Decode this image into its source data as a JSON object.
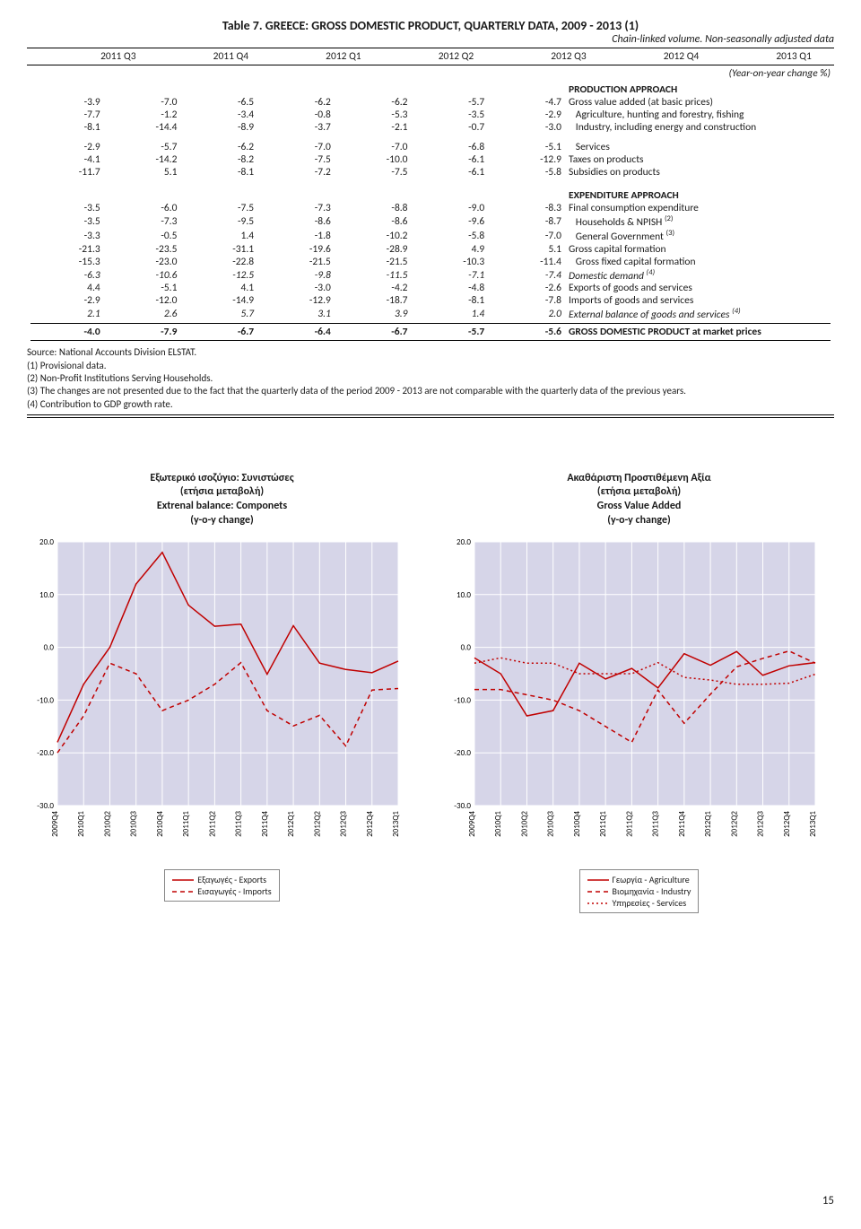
{
  "table": {
    "title": "Table 7. GREECE: GROSS DOMESTIC PRODUCT, QUARTERLY DATA, 2009 - 2013 (1)",
    "subtitle": "Chain-linked volume. Non-seasonally adjusted data",
    "col_headers": [
      "2011 Q3",
      "2011 Q4",
      "2012 Q1",
      "2012 Q2",
      "2012 Q3",
      "2012 Q4",
      "2013 Q1"
    ],
    "unit_line": "(Year-on-year change %)",
    "production_hdr": "PRODUCTION APPROACH",
    "expenditure_hdr": "EXPENDITURE APPROACH",
    "rows_prod": [
      {
        "v": [
          "-3.9",
          "-7.0",
          "-6.5",
          "-6.2",
          "-6.2",
          "-5.7",
          "-4.7"
        ],
        "l": "Gross value added (at basic prices)"
      },
      {
        "v": [
          "-7.7",
          "-1.2",
          "-3.4",
          "-0.8",
          "-5.3",
          "-3.5",
          "-2.9"
        ],
        "l": "   Agriculture, hunting and forestry, fishing"
      },
      {
        "v": [
          "-8.1",
          "-14.4",
          "-8.9",
          "-3.7",
          "-2.1",
          "-0.7",
          "-3.0"
        ],
        "l": "   Industry, including energy and construction"
      }
    ],
    "rows_prod2": [
      {
        "v": [
          "-2.9",
          "-5.7",
          "-6.2",
          "-7.0",
          "-7.0",
          "-6.8",
          "-5.1"
        ],
        "l": "   Services"
      },
      {
        "v": [
          "-4.1",
          "-14.2",
          "-8.2",
          "-7.5",
          "-10.0",
          "-6.1",
          "-12.9"
        ],
        "l": "Taxes on products"
      },
      {
        "v": [
          "-11.7",
          "5.1",
          "-8.1",
          "-7.2",
          "-7.5",
          "-6.1",
          "-5.8"
        ],
        "l": "Subsidies on products"
      }
    ],
    "rows_exp": [
      {
        "v": [
          "-3.5",
          "-6.0",
          "-7.5",
          "-7.3",
          "-8.8",
          "-9.0",
          "-8.3"
        ],
        "l": "Final consumption expenditure"
      },
      {
        "v": [
          "-3.5",
          "-7.3",
          "-9.5",
          "-8.6",
          "-8.6",
          "-9.6",
          "-8.7"
        ],
        "l": "   Households & NPISH (2)"
      },
      {
        "v": [
          "-3.3",
          "-0.5",
          "1.4",
          "-1.8",
          "-10.2",
          "-5.8",
          "-7.0"
        ],
        "l": "   General Government (3)"
      },
      {
        "v": [
          "-21.3",
          "-23.5",
          "-31.1",
          "-19.6",
          "-28.9",
          "4.9",
          "5.1"
        ],
        "l": "Gross capital formation"
      },
      {
        "v": [
          "-15.3",
          "-23.0",
          "-22.8",
          "-21.5",
          "-21.5",
          "-10.3",
          "-11.4"
        ],
        "l": "   Gross fixed capital formation"
      },
      {
        "v": [
          "-6.3",
          "-10.6",
          "-12.5",
          "-9.8",
          "-11.5",
          "-7.1",
          "-7.4"
        ],
        "l": "Domestic demand (4)",
        "it": true
      },
      {
        "v": [
          "4.4",
          "-5.1",
          "4.1",
          "-3.0",
          "-4.2",
          "-4.8",
          "-2.6"
        ],
        "l": "Exports of goods and services"
      },
      {
        "v": [
          "-2.9",
          "-12.0",
          "-14.9",
          "-12.9",
          "-18.7",
          "-8.1",
          "-7.8"
        ],
        "l": "Imports of goods and services"
      },
      {
        "v": [
          "2.1",
          "2.6",
          "5.7",
          "3.1",
          "3.9",
          "1.4",
          "2.0"
        ],
        "l": "External balance of goods and services (4)",
        "it": true
      }
    ],
    "row_gdp": {
      "v": [
        "-4.0",
        "-7.9",
        "-6.7",
        "-6.4",
        "-6.7",
        "-5.7",
        "-5.6"
      ],
      "l": "GROSS DOMESTIC PRODUCT at market prices"
    }
  },
  "notes": {
    "source": "Source: National Accounts Division ELSTAT.",
    "n1": "(1)  Provisional data.",
    "n2": "(2)  Non-Profit Institutions Serving Households.",
    "n3": "(3)  The changes are not presented due to the fact that the quarterly data of the period 2009 - 2013 are not comparable with the quarterly data of the previous years.",
    "n4": "(4)  Contribution to GDP growth rate."
  },
  "charts": {
    "xlabels": [
      "2009Q4",
      "2010Q1",
      "2010Q2",
      "2010Q3",
      "2010Q4",
      "2011Q1",
      "2011Q2",
      "2011Q3",
      "2011Q4",
      "2012Q1",
      "2012Q2",
      "2012Q3",
      "2012Q4",
      "2013Q1"
    ],
    "ylim": [
      -30,
      20
    ],
    "ytick_step": 10,
    "bg_color": "#d6d5e8",
    "grid_color": "#ffffff",
    "line_color": "#c00000",
    "axis_fontsize": 9,
    "title_fontsize": 12,
    "left": {
      "title_lines": [
        "Εξωτερικό ισοζύγιο: Συνιστώσες",
        "(ετήσια μεταβολή)",
        "Extrenal balance: Componets",
        "(y-o-y change)"
      ],
      "series": [
        {
          "name": "Εξαγωγές - Exports",
          "dash": "none",
          "values": [
            -18,
            -7,
            0,
            12,
            18,
            8,
            4,
            4.4,
            -5.1,
            4.1,
            -3.0,
            -4.2,
            -4.8,
            -2.6
          ]
        },
        {
          "name": "Εισαγωγές - Imports",
          "dash": "5,4",
          "values": [
            -20,
            -13,
            -3,
            -5,
            -12,
            -10,
            -7,
            -2.9,
            -12.0,
            -14.9,
            -12.9,
            -18.7,
            -8.1,
            -7.8
          ]
        }
      ]
    },
    "right": {
      "title_lines": [
        "Ακαθάριστη Προστιθέμενη Αξία",
        "(ετήσια μεταβολή)",
        "Gross Value Added",
        "(y-o-y change)"
      ],
      "series": [
        {
          "name": "Γεωργία - Agriculture",
          "dash": "none",
          "values": [
            -2,
            -5,
            -13,
            -12,
            -3,
            -6,
            -4,
            -7.7,
            -1.2,
            -3.4,
            -0.8,
            -5.3,
            -3.5,
            -2.9
          ]
        },
        {
          "name": "Βιομηχανία - Industry",
          "dash": "5,4",
          "values": [
            -8,
            -8,
            -9,
            -10,
            -12,
            -15,
            -18,
            -8.1,
            -14.4,
            -8.9,
            -3.7,
            -2.1,
            -0.7,
            -3.0
          ]
        },
        {
          "name": "Υπηρεσίες - Services",
          "dash": "2,3",
          "values": [
            -3,
            -2,
            -3,
            -3,
            -5,
            -5,
            -5,
            -2.9,
            -5.7,
            -6.2,
            -7.0,
            -7.0,
            -6.8,
            -5.1
          ]
        }
      ]
    }
  },
  "page_num": "15"
}
